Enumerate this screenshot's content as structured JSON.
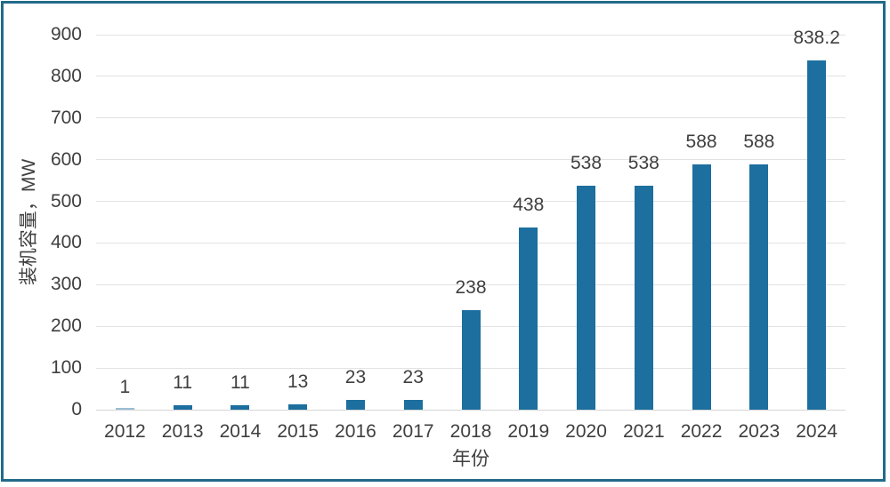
{
  "chart_data": {
    "type": "bar",
    "title": "",
    "xlabel": "年份",
    "ylabel": "装机容量，MW",
    "categories": [
      "2012",
      "2013",
      "2014",
      "2015",
      "2016",
      "2017",
      "2018",
      "2019",
      "2020",
      "2021",
      "2022",
      "2023",
      "2024"
    ],
    "values": [
      1,
      11,
      11,
      13,
      23,
      23,
      238,
      438,
      538,
      538,
      588,
      588,
      838.2
    ],
    "data_labels": [
      "1",
      "11",
      "11",
      "13",
      "23",
      "23",
      "238",
      "438",
      "538",
      "538",
      "588",
      "588",
      "838.2"
    ],
    "ylim": [
      0,
      900
    ],
    "yticks": [
      0,
      100,
      200,
      300,
      400,
      500,
      600,
      700,
      800,
      900
    ],
    "grid": true,
    "legend": false,
    "colors": {
      "bar": "#1c6f9e",
      "bar_tiny_fade_opacity": 0.45,
      "gridline": "#e2e2e2",
      "axis_line": "#d6d6d6",
      "text": "#3f3f3f",
      "frame_border": "#226a8a",
      "background": "#ffffff"
    }
  }
}
